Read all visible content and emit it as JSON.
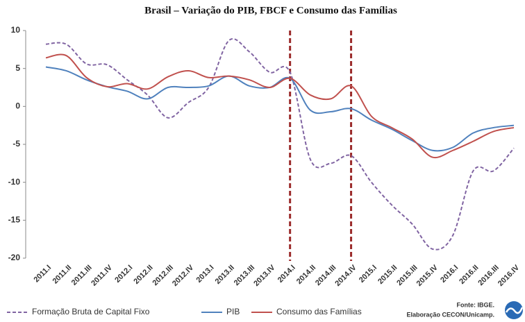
{
  "chart_data": {
    "type": "line",
    "title": "Brasil – Variação do PIB, FBCF e Consumo das Famílias",
    "categories": [
      "2011.I",
      "2011.II",
      "2011.III",
      "2011.IV",
      "2012.I",
      "2012.II",
      "2012.III",
      "2012.IV",
      "2013.I",
      "2013.II",
      "2013.III",
      "2013.IV",
      "2014.I",
      "2014.II",
      "2014.III",
      "2014.IV",
      "2015.I",
      "2015.II",
      "2015.III",
      "2015.IV",
      "2016.I",
      "2016.II",
      "2016.III",
      "2016.IV"
    ],
    "series": [
      {
        "name": "Formação Bruta de Capital Fixo",
        "color": "#8064a2",
        "dash": true,
        "values": [
          8.2,
          8.2,
          5.6,
          5.5,
          3.5,
          1.5,
          -1.5,
          0.5,
          2.5,
          8.7,
          7.2,
          4.5,
          4.5,
          -7,
          -7.5,
          -6.5,
          -10,
          -13,
          -15.5,
          -18.8,
          -17,
          -8.5,
          -8.5,
          -5.5
        ]
      },
      {
        "name": "PIB",
        "color": "#4f81bd",
        "dash": false,
        "values": [
          5.2,
          4.7,
          3.5,
          2.6,
          2.0,
          1.0,
          2.5,
          2.5,
          2.7,
          4.0,
          2.7,
          2.5,
          3.7,
          -0.5,
          -0.7,
          -0.3,
          -1.8,
          -3.0,
          -4.5,
          -5.8,
          -5.4,
          -3.5,
          -2.8,
          -2.5
        ]
      },
      {
        "name": "Consumo das Famílias",
        "color": "#c0504d",
        "dash": false,
        "values": [
          6.4,
          6.7,
          3.8,
          2.6,
          3.0,
          2.3,
          3.9,
          4.7,
          3.8,
          4.0,
          3.5,
          2.5,
          3.7,
          1.5,
          1.0,
          2.7,
          -1.3,
          -2.8,
          -4.3,
          -6.7,
          -5.8,
          -4.6,
          -3.3,
          -2.8
        ]
      }
    ],
    "ylim": [
      -20,
      10
    ],
    "yticks": [
      -20,
      -15,
      -10,
      -5,
      0,
      5,
      10
    ],
    "grid": false,
    "markers": [
      "2014.I",
      "2014.IV"
    ],
    "marker_color": "#9b2b2b",
    "legend": "bottom",
    "source": [
      "Fonte: IBGE.",
      "Elaboração CECON/Unicamp."
    ]
  }
}
